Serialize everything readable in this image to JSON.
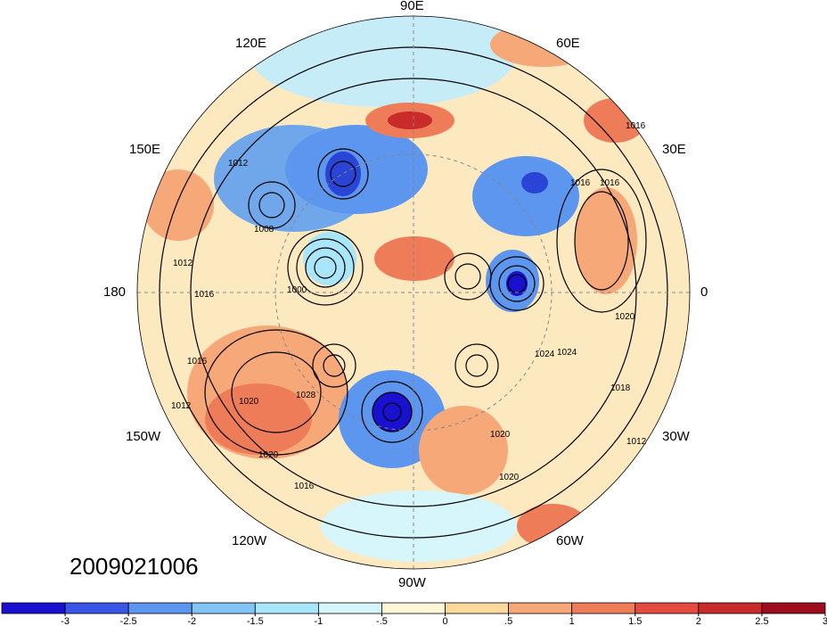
{
  "timestamp": "2009021006",
  "longitude_labels": {
    "lon_90E": "90E",
    "lon_60E": "60E",
    "lon_120E": "120E",
    "lon_30E": "30E",
    "lon_150E": "150E",
    "lon_180": "180",
    "lon_0": "0",
    "lon_150W": "150W",
    "lon_30W": "30W",
    "lon_120W": "120W",
    "lon_60W": "60W",
    "lon_90W": "90W"
  },
  "contour_labels": [
    "1016",
    "1012",
    "1008",
    "1012",
    "1016",
    "1000",
    "1016",
    "1024",
    "1028",
    "1012",
    "1020",
    "1016",
    "1020",
    "1020",
    "1024",
    "1016",
    "1018",
    "1020",
    "1016",
    "1012",
    "1020"
  ],
  "colorbar": {
    "colors": [
      "#1a10d0",
      "#3a56e6",
      "#5d96ee",
      "#82c4f4",
      "#a9e6fa",
      "#d6f6fb",
      "#fff6d8",
      "#fbd89c",
      "#f6a878",
      "#ef7c58",
      "#e44a40",
      "#c92a2a",
      "#9e0d1e"
    ],
    "tick_labels": [
      "-3",
      "-2.5",
      "-2",
      "-1.5",
      "-1",
      "-.5",
      "0",
      ".5",
      "1",
      "1.5",
      "2",
      "2.5",
      "3"
    ]
  }
}
